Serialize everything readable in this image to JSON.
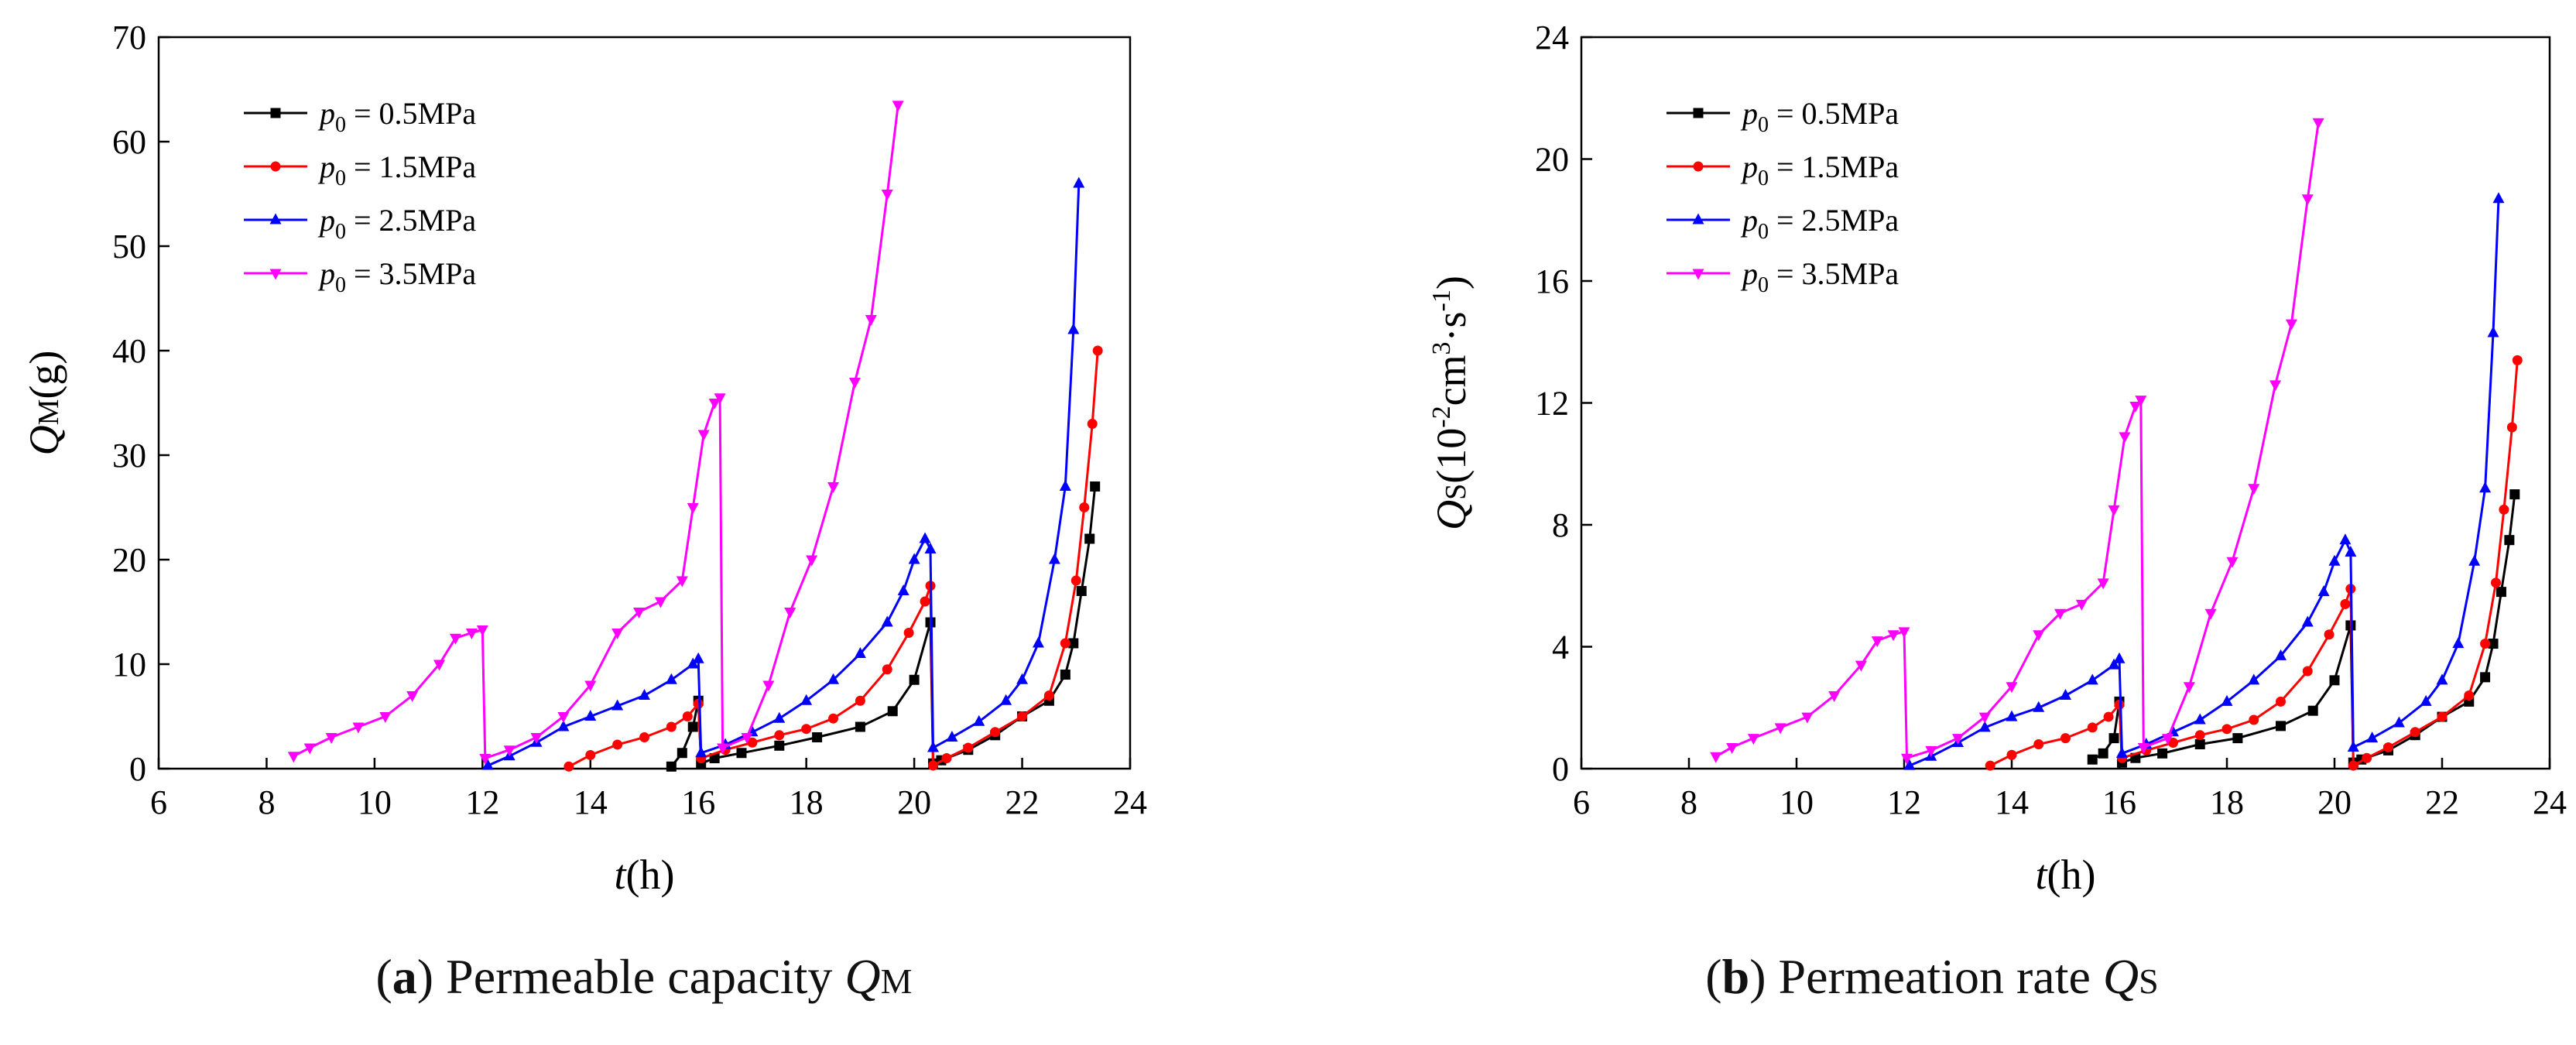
{
  "chart_data": [
    {
      "type": "line",
      "id": "a",
      "caption": {
        "letter": "a",
        "text": "Permeable capacity ",
        "var": "Q",
        "sub": "M"
      },
      "ylabel": {
        "var": "Q",
        "sub": "M",
        "unit": "(g)"
      },
      "xlabel": {
        "var": "t",
        "unit": "(h)"
      },
      "xlim": [
        6,
        24
      ],
      "ylim": [
        0,
        70
      ],
      "xticks": [
        "6",
        "8",
        "10",
        "12",
        "14",
        "16",
        "18",
        "20",
        "22",
        "24"
      ],
      "yticks": [
        "0",
        "10",
        "20",
        "30",
        "40",
        "50",
        "60",
        "70"
      ],
      "legend": "top-left",
      "series": [
        {
          "name": "p0 = 0.5MPa",
          "label_var": "p",
          "label_sub": "0",
          "label_rest": " = 0.5MPa",
          "color": "#000000",
          "marker": "square",
          "x": [
            15.5,
            15.7,
            15.9,
            16.0,
            16.05,
            16.3,
            16.8,
            17.5,
            18.2,
            19.0,
            19.6,
            20.0,
            20.3,
            20.35,
            20.5,
            21.0,
            21.5,
            22.0,
            22.5,
            22.8,
            22.95,
            23.1,
            23.25,
            23.35
          ],
          "y": [
            0.2,
            1.5,
            4,
            6.5,
            0.5,
            1.0,
            1.5,
            2.2,
            3.0,
            4.0,
            5.5,
            8.5,
            14,
            0.5,
            0.8,
            1.8,
            3.2,
            5.0,
            6.5,
            9,
            12,
            17,
            22,
            27
          ]
        },
        {
          "name": "p0 = 1.5MPa",
          "label_var": "p",
          "label_sub": "0",
          "label_rest": " = 1.5MPa",
          "color": "#ff0000",
          "marker": "circle",
          "x": [
            13.6,
            14.0,
            14.5,
            15.0,
            15.5,
            15.8,
            16.0,
            16.05,
            16.5,
            17.0,
            17.5,
            18.0,
            18.5,
            19.0,
            19.5,
            19.9,
            20.2,
            20.3,
            20.35,
            20.6,
            21.0,
            21.5,
            22.0,
            22.5,
            22.8,
            23.0,
            23.15,
            23.3,
            23.4
          ],
          "y": [
            0.2,
            1.3,
            2.3,
            3.0,
            4.0,
            5.0,
            6.2,
            1.0,
            1.8,
            2.5,
            3.2,
            3.8,
            4.8,
            6.5,
            9.5,
            13,
            16,
            17.5,
            0.3,
            1.0,
            2.0,
            3.5,
            5.0,
            7.0,
            12,
            18,
            25,
            33,
            40
          ]
        },
        {
          "name": "p0 = 2.5MPa",
          "label_var": "p",
          "label_sub": "0",
          "label_rest": " = 2.5MPa",
          "color": "#0000ff",
          "marker": "triangle-up",
          "x": [
            12.1,
            12.5,
            13.0,
            13.5,
            14.0,
            14.5,
            15.0,
            15.5,
            15.9,
            16.0,
            16.05,
            16.5,
            17.0,
            17.5,
            18.0,
            18.5,
            19.0,
            19.5,
            19.8,
            20.0,
            20.2,
            20.3,
            20.35,
            20.7,
            21.2,
            21.7,
            22.0,
            22.3,
            22.6,
            22.8,
            22.95,
            23.05
          ],
          "y": [
            0.3,
            1.2,
            2.5,
            4.0,
            5.0,
            6.0,
            7.0,
            8.5,
            10,
            10.5,
            1.5,
            2.3,
            3.5,
            4.8,
            6.5,
            8.5,
            11,
            14,
            17,
            20,
            22,
            21,
            2.0,
            3.0,
            4.5,
            6.5,
            8.5,
            12,
            20,
            27,
            42,
            56
          ]
        },
        {
          "name": "p0 = 3.5MPa",
          "label_var": "p",
          "label_sub": "0",
          "label_rest": " = 3.5MPa",
          "color": "#ff00ff",
          "marker": "triangle-down",
          "x": [
            8.5,
            8.8,
            9.2,
            9.7,
            10.2,
            10.7,
            11.2,
            11.5,
            11.8,
            12.0,
            12.05,
            12.5,
            13.0,
            13.5,
            14.0,
            14.5,
            14.9,
            15.3,
            15.7,
            15.9,
            16.1,
            16.3,
            16.4,
            16.45,
            16.9,
            17.3,
            17.7,
            18.1,
            18.5,
            18.9,
            19.2,
            19.5,
            19.7
          ],
          "y": [
            1.2,
            2.0,
            3.0,
            4.0,
            5.0,
            7.0,
            10,
            12.5,
            13,
            13.3,
            1.0,
            1.8,
            3.0,
            5.0,
            8.0,
            13,
            15,
            16,
            18,
            25,
            32,
            35,
            35.5,
            2.0,
            3.0,
            8.0,
            15,
            20,
            27,
            37,
            43,
            55,
            63.5
          ]
        }
      ]
    },
    {
      "type": "line",
      "id": "b",
      "caption": {
        "letter": "b",
        "text": "Permeation rate ",
        "var": "Q",
        "sub": "S"
      },
      "ylabel": {
        "var": "Q",
        "sub": "S",
        "unit": "(10",
        "exp1": "-2",
        "unit2": "cm",
        "exp2": "3",
        "unit3": "·s",
        "exp3": "-1",
        "unit4": ")"
      },
      "xlabel": {
        "var": "t",
        "unit": "(h)"
      },
      "xlim": [
        6,
        24
      ],
      "ylim": [
        0,
        24
      ],
      "xticks": [
        "6",
        "8",
        "10",
        "12",
        "14",
        "16",
        "18",
        "20",
        "22",
        "24"
      ],
      "yticks": [
        "0",
        "4",
        "8",
        "12",
        "16",
        "20",
        "24"
      ],
      "legend": "top-left",
      "series": [
        {
          "name": "p0 = 0.5MPa",
          "label_var": "p",
          "label_sub": "0",
          "label_rest": " = 0.5MPa",
          "color": "#000000",
          "marker": "square",
          "x": [
            15.5,
            15.7,
            15.9,
            16.0,
            16.05,
            16.3,
            16.8,
            17.5,
            18.2,
            19.0,
            19.6,
            20.0,
            20.3,
            20.35,
            20.5,
            21.0,
            21.5,
            22.0,
            22.5,
            22.8,
            22.95,
            23.1,
            23.25,
            23.35
          ],
          "y": [
            0.3,
            0.5,
            1.0,
            2.2,
            0.2,
            0.35,
            0.5,
            0.8,
            1.0,
            1.4,
            1.9,
            2.9,
            4.7,
            0.2,
            0.3,
            0.6,
            1.1,
            1.7,
            2.2,
            3.0,
            4.1,
            5.8,
            7.5,
            9.0
          ]
        },
        {
          "name": "p0 = 1.5MPa",
          "label_var": "p",
          "label_sub": "0",
          "label_rest": " = 1.5MPa",
          "color": "#ff0000",
          "marker": "circle",
          "x": [
            13.6,
            14.0,
            14.5,
            15.0,
            15.5,
            15.8,
            16.0,
            16.05,
            16.5,
            17.0,
            17.5,
            18.0,
            18.5,
            19.0,
            19.5,
            19.9,
            20.2,
            20.3,
            20.35,
            20.6,
            21.0,
            21.5,
            22.0,
            22.5,
            22.8,
            23.0,
            23.15,
            23.3,
            23.4
          ],
          "y": [
            0.1,
            0.45,
            0.8,
            1.0,
            1.35,
            1.7,
            2.1,
            0.35,
            0.6,
            0.85,
            1.1,
            1.3,
            1.6,
            2.2,
            3.2,
            4.4,
            5.4,
            5.9,
            0.1,
            0.35,
            0.7,
            1.2,
            1.7,
            2.4,
            4.1,
            6.1,
            8.5,
            11.2,
            13.4
          ]
        },
        {
          "name": "p0 = 2.5MPa",
          "label_var": "p",
          "label_sub": "0",
          "label_rest": " = 2.5MPa",
          "color": "#0000ff",
          "marker": "triangle-up",
          "x": [
            12.1,
            12.5,
            13.0,
            13.5,
            14.0,
            14.5,
            15.0,
            15.5,
            15.9,
            16.0,
            16.05,
            16.5,
            17.0,
            17.5,
            18.0,
            18.5,
            19.0,
            19.5,
            19.8,
            20.0,
            20.2,
            20.3,
            20.35,
            20.7,
            21.2,
            21.7,
            22.0,
            22.3,
            22.6,
            22.8,
            22.95,
            23.05
          ],
          "y": [
            0.1,
            0.4,
            0.85,
            1.35,
            1.7,
            2.0,
            2.4,
            2.9,
            3.4,
            3.6,
            0.5,
            0.8,
            1.2,
            1.6,
            2.2,
            2.9,
            3.7,
            4.8,
            5.8,
            6.8,
            7.5,
            7.1,
            0.7,
            1.0,
            1.5,
            2.2,
            2.9,
            4.1,
            6.8,
            9.2,
            14.3,
            18.7
          ]
        },
        {
          "name": "p0 = 3.5MPa",
          "label_var": "p",
          "label_sub": "0",
          "label_rest": " = 3.5MPa",
          "color": "#ff00ff",
          "marker": "triangle-down",
          "x": [
            8.5,
            8.8,
            9.2,
            9.7,
            10.2,
            10.7,
            11.2,
            11.5,
            11.8,
            12.0,
            12.05,
            12.5,
            13.0,
            13.5,
            14.0,
            14.5,
            14.9,
            15.3,
            15.7,
            15.9,
            16.1,
            16.3,
            16.4,
            16.45,
            16.9,
            17.3,
            17.7,
            18.1,
            18.5,
            18.9,
            19.2,
            19.5,
            19.7
          ],
          "y": [
            0.4,
            0.7,
            1.0,
            1.35,
            1.7,
            2.4,
            3.4,
            4.2,
            4.4,
            4.5,
            0.35,
            0.6,
            1.0,
            1.7,
            2.7,
            4.4,
            5.1,
            5.4,
            6.1,
            8.5,
            10.9,
            11.9,
            12.1,
            0.7,
            1.0,
            2.7,
            5.1,
            6.8,
            9.2,
            12.6,
            14.6,
            18.7,
            21.2
          ]
        }
      ]
    }
  ]
}
